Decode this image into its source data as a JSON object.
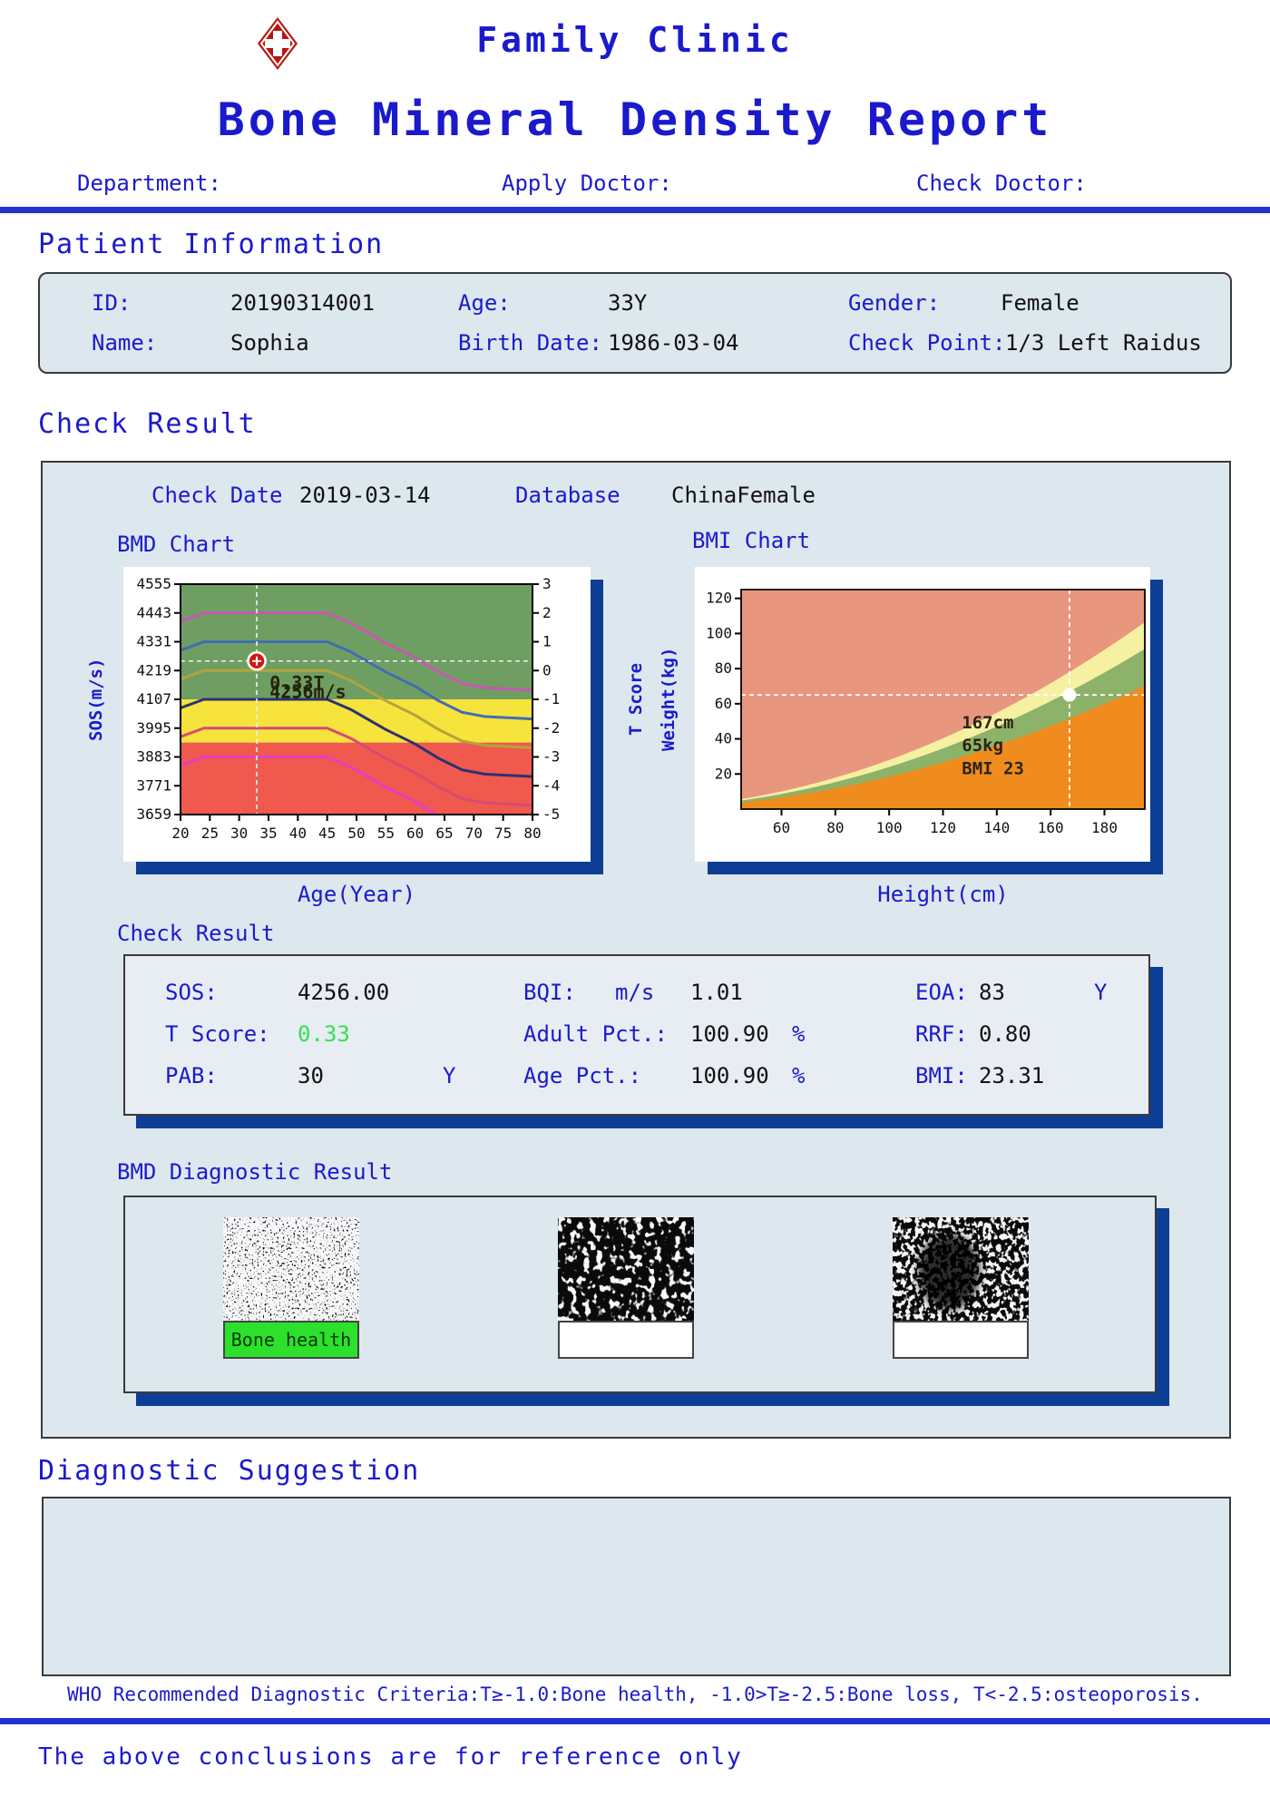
{
  "header": {
    "clinic": "Family Clinic",
    "title": "Bone Mineral Density Report",
    "department_label": "Department:",
    "apply_doctor_label": "Apply Doctor:",
    "check_doctor_label": "Check Doctor:"
  },
  "patient": {
    "section_title": "Patient Information",
    "id_label": "ID:",
    "id": "20190314001",
    "age_label": "Age:",
    "age": "33Y",
    "gender_label": "Gender:",
    "gender": "Female",
    "name_label": "Name:",
    "name": "Sophia",
    "birth_label": "Birth Date:",
    "birth": "1986-03-04",
    "checkpoint_label": "Check Point:",
    "checkpoint": "1/3 Left Raidus"
  },
  "check": {
    "section_title": "Check Result",
    "check_date_label": "Check Date",
    "check_date": "2019-03-14",
    "database_label": "Database",
    "database": "ChinaFemale",
    "bmd_chart_label": "BMD Chart",
    "bmi_chart_label": "BMI Chart",
    "result_subtitle": "Check Result"
  },
  "results": {
    "rows": [
      [
        {
          "label": "SOS:",
          "value": "4256.00",
          "unit": "m/s"
        },
        {
          "label": "BQI:",
          "value": "1.01",
          "unit": ""
        },
        {
          "label": "EOA:",
          "value": "83",
          "unit": "Y"
        }
      ],
      [
        {
          "label": "T Score:",
          "value": "0.33",
          "unit": ""
        },
        {
          "label": "Adult Pct.:",
          "value": "100.90",
          "unit": "%"
        },
        {
          "label": "RRF:",
          "value": "0.80",
          "unit": ""
        }
      ],
      [
        {
          "label": "PAB:",
          "value": "30",
          "unit": "Y"
        },
        {
          "label": "Age Pct.:",
          "value": "100.90",
          "unit": "%"
        },
        {
          "label": "BMI:",
          "value": "23.31",
          "unit": ""
        }
      ]
    ]
  },
  "diagnostic": {
    "title": "BMD Diagnostic Result",
    "labels": [
      "Bone health",
      "",
      ""
    ]
  },
  "suggestion": {
    "title": "Diagnostic Suggestion",
    "who": "WHO Recommended Diagnostic Criteria:T≥-1.0:Bone health, -1.0>T≥-2.5:Bone loss, T<-2.5:osteoporosis."
  },
  "footer": {
    "note": "The above conclusions are for reference only"
  },
  "colors": {
    "accent_blue": "#1a1acc",
    "line_blue": "#2433cf",
    "navy_shadow": "#0d3e96",
    "panel_bg": "#dde7ee",
    "status_green": "#35e052",
    "bone_health_bg": "#2ce02c"
  },
  "chart_data": [
    {
      "type": "line",
      "name": "bmd-sos-vs-age",
      "title": "BMD Chart",
      "xlabel": "Age(Year)",
      "ylabel_left": "SOS(m/s)",
      "ylabel_right": "T Score",
      "xlim": [
        20,
        80
      ],
      "ylim": [
        3659,
        4555
      ],
      "x_ticks": [
        20,
        25,
        30,
        35,
        40,
        45,
        50,
        55,
        60,
        65,
        70,
        75,
        80
      ],
      "y_ticks": [
        4555,
        4443,
        4331,
        4219,
        4107,
        3995,
        3883,
        3771,
        3659
      ],
      "t_ticks": [
        3,
        2,
        1,
        0,
        -1,
        -2,
        -3,
        -4,
        -5
      ],
      "sos_at_t0": 4219,
      "sos_per_t": 112,
      "bands": [
        {
          "name": "bone-health",
          "color": "#6f9e62",
          "sos_range": [
            4107,
            4555
          ]
        },
        {
          "name": "bone-loss",
          "color": "#f6e33c",
          "sos_range": [
            3939,
            4107
          ]
        },
        {
          "name": "osteoporosis",
          "color": "#f0594e",
          "sos_range": [
            3659,
            3939
          ]
        }
      ],
      "curves": [
        {
          "plateau_t": 2,
          "color": "#c857b0"
        },
        {
          "plateau_t": 1,
          "color": "#3f6db5"
        },
        {
          "plateau_t": 0,
          "color": "#b0a43c"
        },
        {
          "plateau_t": -1,
          "color": "#2c3272"
        },
        {
          "plateau_t": -2,
          "color": "#d84a74"
        },
        {
          "plateau_t": -3,
          "color": "#e33fc0"
        }
      ],
      "decline_profile": [
        [
          20,
          -0.3
        ],
        [
          24,
          0
        ],
        [
          45,
          0
        ],
        [
          49,
          -0.35
        ],
        [
          55,
          -1.05
        ],
        [
          60,
          -1.55
        ],
        [
          64,
          -2.05
        ],
        [
          68,
          -2.45
        ],
        [
          72,
          -2.6
        ],
        [
          80,
          -2.68
        ]
      ],
      "marker": {
        "age": 33,
        "sos": 4256,
        "t": 0.33,
        "color": "#d6150f"
      },
      "annotations": [
        "0.33T",
        "4256m/s"
      ]
    },
    {
      "type": "area",
      "name": "bmi-weight-vs-height",
      "title": "BMI Chart",
      "xlabel": "Height(cm)",
      "ylabel": "Weight(kg)",
      "xlim": [
        45,
        195
      ],
      "ylim": [
        0,
        125
      ],
      "x_ticks": [
        60,
        80,
        100,
        120,
        140,
        160,
        180
      ],
      "y_ticks": [
        20,
        40,
        60,
        80,
        100,
        120
      ],
      "bmi_boundaries": [
        18.5,
        24,
        28
      ],
      "region_colors": {
        "under": "#ef8c1d",
        "normal": "#8db269",
        "overweight": "#f6f0a2",
        "obese": "#e9967f"
      },
      "marker": {
        "height_cm": 167,
        "weight_kg": 65,
        "bmi": 23
      },
      "annotations": [
        "167cm",
        "65kg",
        "BMI 23"
      ]
    }
  ]
}
